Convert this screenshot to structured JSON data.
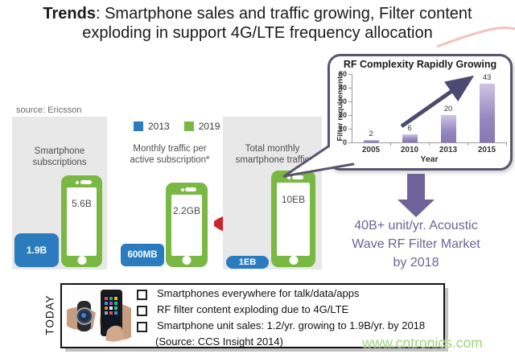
{
  "title": {
    "emphasis": "Trends",
    "rest": ": Smartphone sales and traffic growing, Filter content",
    "line2": "exploding in support 4G/LTE frequency allocation"
  },
  "source_label": "source: Ericsson",
  "legend": {
    "items": [
      {
        "label": "2013",
        "color": "#2a7cbf"
      },
      {
        "label": "2019",
        "color": "#79b843"
      }
    ]
  },
  "panels": [
    {
      "heading_line1": "Smartphone",
      "heading_line2": "subscriptions",
      "value_2013": "1.9B",
      "value_2019": "5.6B"
    },
    {
      "heading_line1": "Monthly traffic per",
      "heading_line2": "active subscription*",
      "value_2013": "600MB",
      "value_2019": "2.2GB"
    },
    {
      "heading_line1": "Total monthly",
      "heading_line2": "smartphone traffic",
      "value_2013": "1EB",
      "value_2019": "10EB"
    }
  ],
  "chart_data": {
    "type": "bar",
    "title": "RF Complexity Rapidly Growing",
    "categories": [
      "2005",
      "2010",
      "2013",
      "2015"
    ],
    "values": [
      2,
      6,
      20,
      43
    ],
    "xlabel": "Year",
    "ylabel": "Filter requirements",
    "ylim": [
      0,
      50
    ],
    "yticks": [
      0,
      10,
      20,
      30,
      40,
      50
    ],
    "grid": false,
    "legend_position": "none",
    "bar_color": "#9383bd"
  },
  "market_callout": {
    "line1": "40B+ unit/yr. Acoustic",
    "line2": "Wave RF Filter Market",
    "line3": "by 2018",
    "color": "#6d6295"
  },
  "today_box": {
    "label": "TODAY",
    "bullets": [
      "Smartphones everywhere for talk/data/apps",
      "RF filter content exploding due to 4G/LTE",
      "Smartphone unit sales: 1.2/yr. growing to 1.9B/yr. by 2018"
    ],
    "source": "(Source: CCS Insight 2014)"
  },
  "watermark": "www.cntronics.com",
  "colors": {
    "blue_2013": "#2a7cbf",
    "green_2019": "#79b843",
    "red_arrow": "#c9252b",
    "purple_accent": "#6d6295",
    "panel_gray": "#e8e8e8"
  }
}
